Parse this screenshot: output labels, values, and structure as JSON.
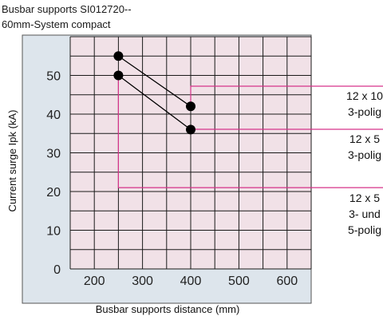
{
  "chart_data": {
    "type": "line",
    "title": "Busbar supports SI012720--",
    "subtitle": "60mm-System compact",
    "xlabel": "Busbar supports distance (mm)",
    "ylabel": "Current surge Ipk (kA)",
    "xlim": [
      150,
      650
    ],
    "ylim": [
      0,
      60
    ],
    "x_ticks": [
      "200",
      "300",
      "400",
      "500",
      "600"
    ],
    "y_ticks": [
      "0",
      "10",
      "20",
      "30",
      "40",
      "50"
    ],
    "grid": true,
    "colors": {
      "plot_bg": "#f1e1e7",
      "frame_bg": "#dde5ec",
      "grid": "#1a1a1a",
      "marker": "#000000",
      "leader": "#d6338a"
    },
    "series": [
      {
        "label_lines": [
          "12 x 10",
          "3-polig"
        ],
        "points": [
          {
            "x": 250,
            "y": 55
          },
          {
            "x": 400,
            "y": 42
          }
        ],
        "leader_from": {
          "x": 400,
          "y": 42
        }
      },
      {
        "label_lines": [
          "12 x 5",
          "3-polig"
        ],
        "points": [
          {
            "x": 250,
            "y": 50
          },
          {
            "x": 400,
            "y": 36
          }
        ],
        "leader_from": {
          "x": 400,
          "y": 36
        }
      },
      {
        "label_lines": [
          "12 x 5",
          "3- und",
          "5-polig"
        ],
        "points": [],
        "leader_from": {
          "x": 250,
          "y": 50
        },
        "leader_level": 21
      }
    ]
  }
}
